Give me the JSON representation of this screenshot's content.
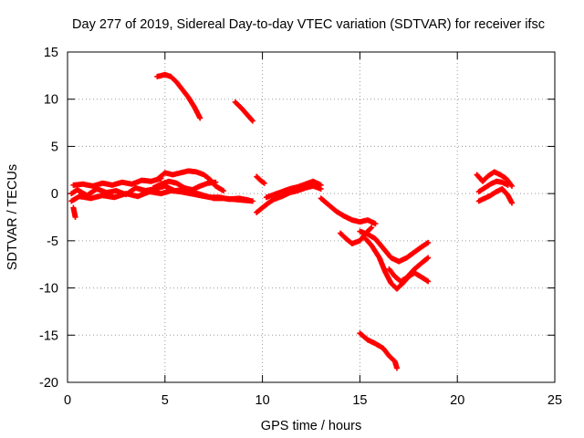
{
  "chart_data": {
    "type": "scatter",
    "title": "Day 277 of 2019, Sidereal Day-to-day VTEC variation (SDTVAR) for receiver ifsc",
    "xlabel": "GPS time / hours",
    "ylabel": "SDTVAR / TECUs",
    "xlim": [
      0,
      25
    ],
    "ylim": [
      -20,
      15
    ],
    "xticks": [
      "0",
      "5",
      "10",
      "15",
      "20",
      "25"
    ],
    "yticks": [
      "-20",
      "-15",
      "-10",
      "-5",
      "0",
      "5",
      "10",
      "15"
    ],
    "grid": true,
    "marker": "plus",
    "color": "#ff0000",
    "series": [
      {
        "segments": [
          {
            "x": [
              0.2,
              0.5,
              1.0,
              1.5,
              2.0,
              2.5,
              3.0,
              3.5,
              4.0,
              4.5,
              5.0,
              5.5,
              6.0,
              6.5,
              7.0,
              7.5,
              8.0,
              8.5,
              9.0,
              9.5
            ],
            "y": [
              0.0,
              0.4,
              -0.2,
              0.5,
              0.1,
              0.3,
              -0.1,
              0.6,
              0.3,
              0.5,
              0.8,
              0.3,
              0.4,
              0.1,
              -0.2,
              -0.5,
              -0.5,
              -0.6,
              -0.7,
              -0.8
            ]
          },
          {
            "x": [
              0.2,
              0.6,
              1.2,
              1.8,
              2.4,
              3.0,
              3.6,
              4.2,
              4.8,
              5.3,
              5.8,
              6.3,
              6.8,
              7.3,
              7.8,
              8.3,
              8.8,
              9.3
            ],
            "y": [
              -0.8,
              -0.3,
              -0.5,
              -0.2,
              -0.4,
              0.0,
              -0.3,
              0.2,
              0.0,
              0.3,
              0.2,
              0.0,
              -0.2,
              -0.4,
              -0.4,
              -0.6,
              -0.5,
              -0.7
            ]
          },
          {
            "x": [
              0.3,
              0.8,
              1.3,
              1.8,
              2.3,
              2.8,
              3.3,
              3.8,
              4.3,
              4.8
            ],
            "y": [
              0.9,
              1.0,
              0.8,
              1.1,
              0.9,
              1.2,
              1.0,
              1.4,
              1.3,
              1.6
            ]
          },
          {
            "x": [
              4.6,
              5.0,
              5.4,
              5.8,
              6.2,
              6.6,
              7.0,
              7.3,
              7.6,
              8.0
            ],
            "y": [
              1.5,
              2.2,
              2.0,
              2.2,
              2.4,
              2.3,
              2.0,
              1.5,
              0.8,
              0.3
            ]
          },
          {
            "x": [
              4.4,
              4.8,
              5.2,
              5.6,
              6.0,
              6.4,
              6.8,
              7.2,
              7.6
            ],
            "y": [
              0.6,
              1.0,
              1.3,
              1.1,
              0.6,
              0.4,
              0.8,
              1.1,
              1.2
            ]
          },
          {
            "x": [
              0.3,
              0.35,
              0.4
            ],
            "y": [
              -1.5,
              -2.0,
              -2.5
            ]
          },
          {
            "x": [
              9.7,
              9.9,
              10.1
            ],
            "y": [
              1.8,
              1.4,
              1.1
            ]
          },
          {
            "x": [
              9.7,
              10.0,
              10.3,
              10.6,
              11.0,
              11.4,
              11.8,
              12.2,
              12.6,
              13.0
            ],
            "y": [
              -2.0,
              -1.5,
              -1.0,
              -0.6,
              -0.3,
              0.1,
              0.3,
              0.6,
              0.8,
              0.5
            ]
          },
          {
            "x": [
              10.2,
              10.6,
              11.0,
              11.4,
              11.8,
              12.2,
              12.6,
              13.0
            ],
            "y": [
              -0.4,
              -0.1,
              0.2,
              0.5,
              0.7,
              1.0,
              1.3,
              0.9
            ]
          },
          {
            "x": [
              13.0,
              13.4,
              13.8,
              14.2,
              14.6,
              15.0,
              15.4,
              15.8
            ],
            "y": [
              -0.5,
              -1.2,
              -1.9,
              -2.4,
              -2.8,
              -3.0,
              -2.8,
              -3.2
            ]
          },
          {
            "x": [
              14.0,
              14.3,
              14.6,
              15.0,
              15.3,
              15.6
            ],
            "y": [
              -4.2,
              -4.8,
              -5.3,
              -5.0,
              -4.2,
              -3.6
            ]
          },
          {
            "x": [
              15.0,
              15.4,
              15.8,
              16.2,
              16.6,
              17.0,
              17.4,
              17.8,
              18.2,
              18.5
            ],
            "y": [
              -4.0,
              -4.3,
              -4.8,
              -5.8,
              -6.8,
              -7.2,
              -6.8,
              -6.2,
              -5.6,
              -5.2
            ]
          },
          {
            "x": [
              15.3,
              15.6,
              16.0,
              16.3,
              16.6,
              16.9,
              17.2,
              17.5,
              17.8,
              18.2,
              18.5
            ],
            "y": [
              -4.8,
              -5.5,
              -6.8,
              -8.3,
              -9.5,
              -10.1,
              -9.5,
              -8.8,
              -8.4,
              -8.9,
              -9.3
            ]
          },
          {
            "x": [
              16.5,
              16.8,
              17.1,
              17.4,
              17.8,
              18.2,
              18.5
            ],
            "y": [
              -8.0,
              -8.8,
              -9.3,
              -8.9,
              -8.0,
              -7.3,
              -6.8
            ]
          },
          {
            "x": [
              4.6,
              5.0,
              5.3,
              5.6,
              5.9,
              6.2,
              6.5,
              6.8
            ],
            "y": [
              12.4,
              12.6,
              12.4,
              11.8,
              11.0,
              10.2,
              9.2,
              8.0
            ]
          },
          {
            "x": [
              8.6,
              8.9,
              9.2,
              9.5
            ],
            "y": [
              9.7,
              9.1,
              8.4,
              7.7
            ]
          },
          {
            "x": [
              15.0,
              15.4,
              15.8,
              16.2,
              16.5,
              16.8,
              16.9
            ],
            "y": [
              -14.8,
              -15.5,
              -15.9,
              -16.4,
              -17.2,
              -17.8,
              -18.5
            ]
          },
          {
            "x": [
              21.0,
              21.3,
              21.6,
              21.9,
              22.2,
              22.5,
              22.8
            ],
            "y": [
              2.0,
              1.3,
              1.9,
              2.3,
              2.0,
              1.6,
              0.8
            ]
          },
          {
            "x": [
              21.1,
              21.4,
              21.7,
              22.0,
              22.3,
              22.6
            ],
            "y": [
              0.2,
              0.6,
              1.0,
              1.3,
              1.2,
              0.9
            ]
          },
          {
            "x": [
              21.1,
              21.4,
              21.7,
              22.0,
              22.3,
              22.6,
              22.8
            ],
            "y": [
              -0.8,
              -0.5,
              -0.2,
              0.2,
              0.5,
              -0.2,
              -1.0
            ]
          }
        ]
      }
    ]
  }
}
